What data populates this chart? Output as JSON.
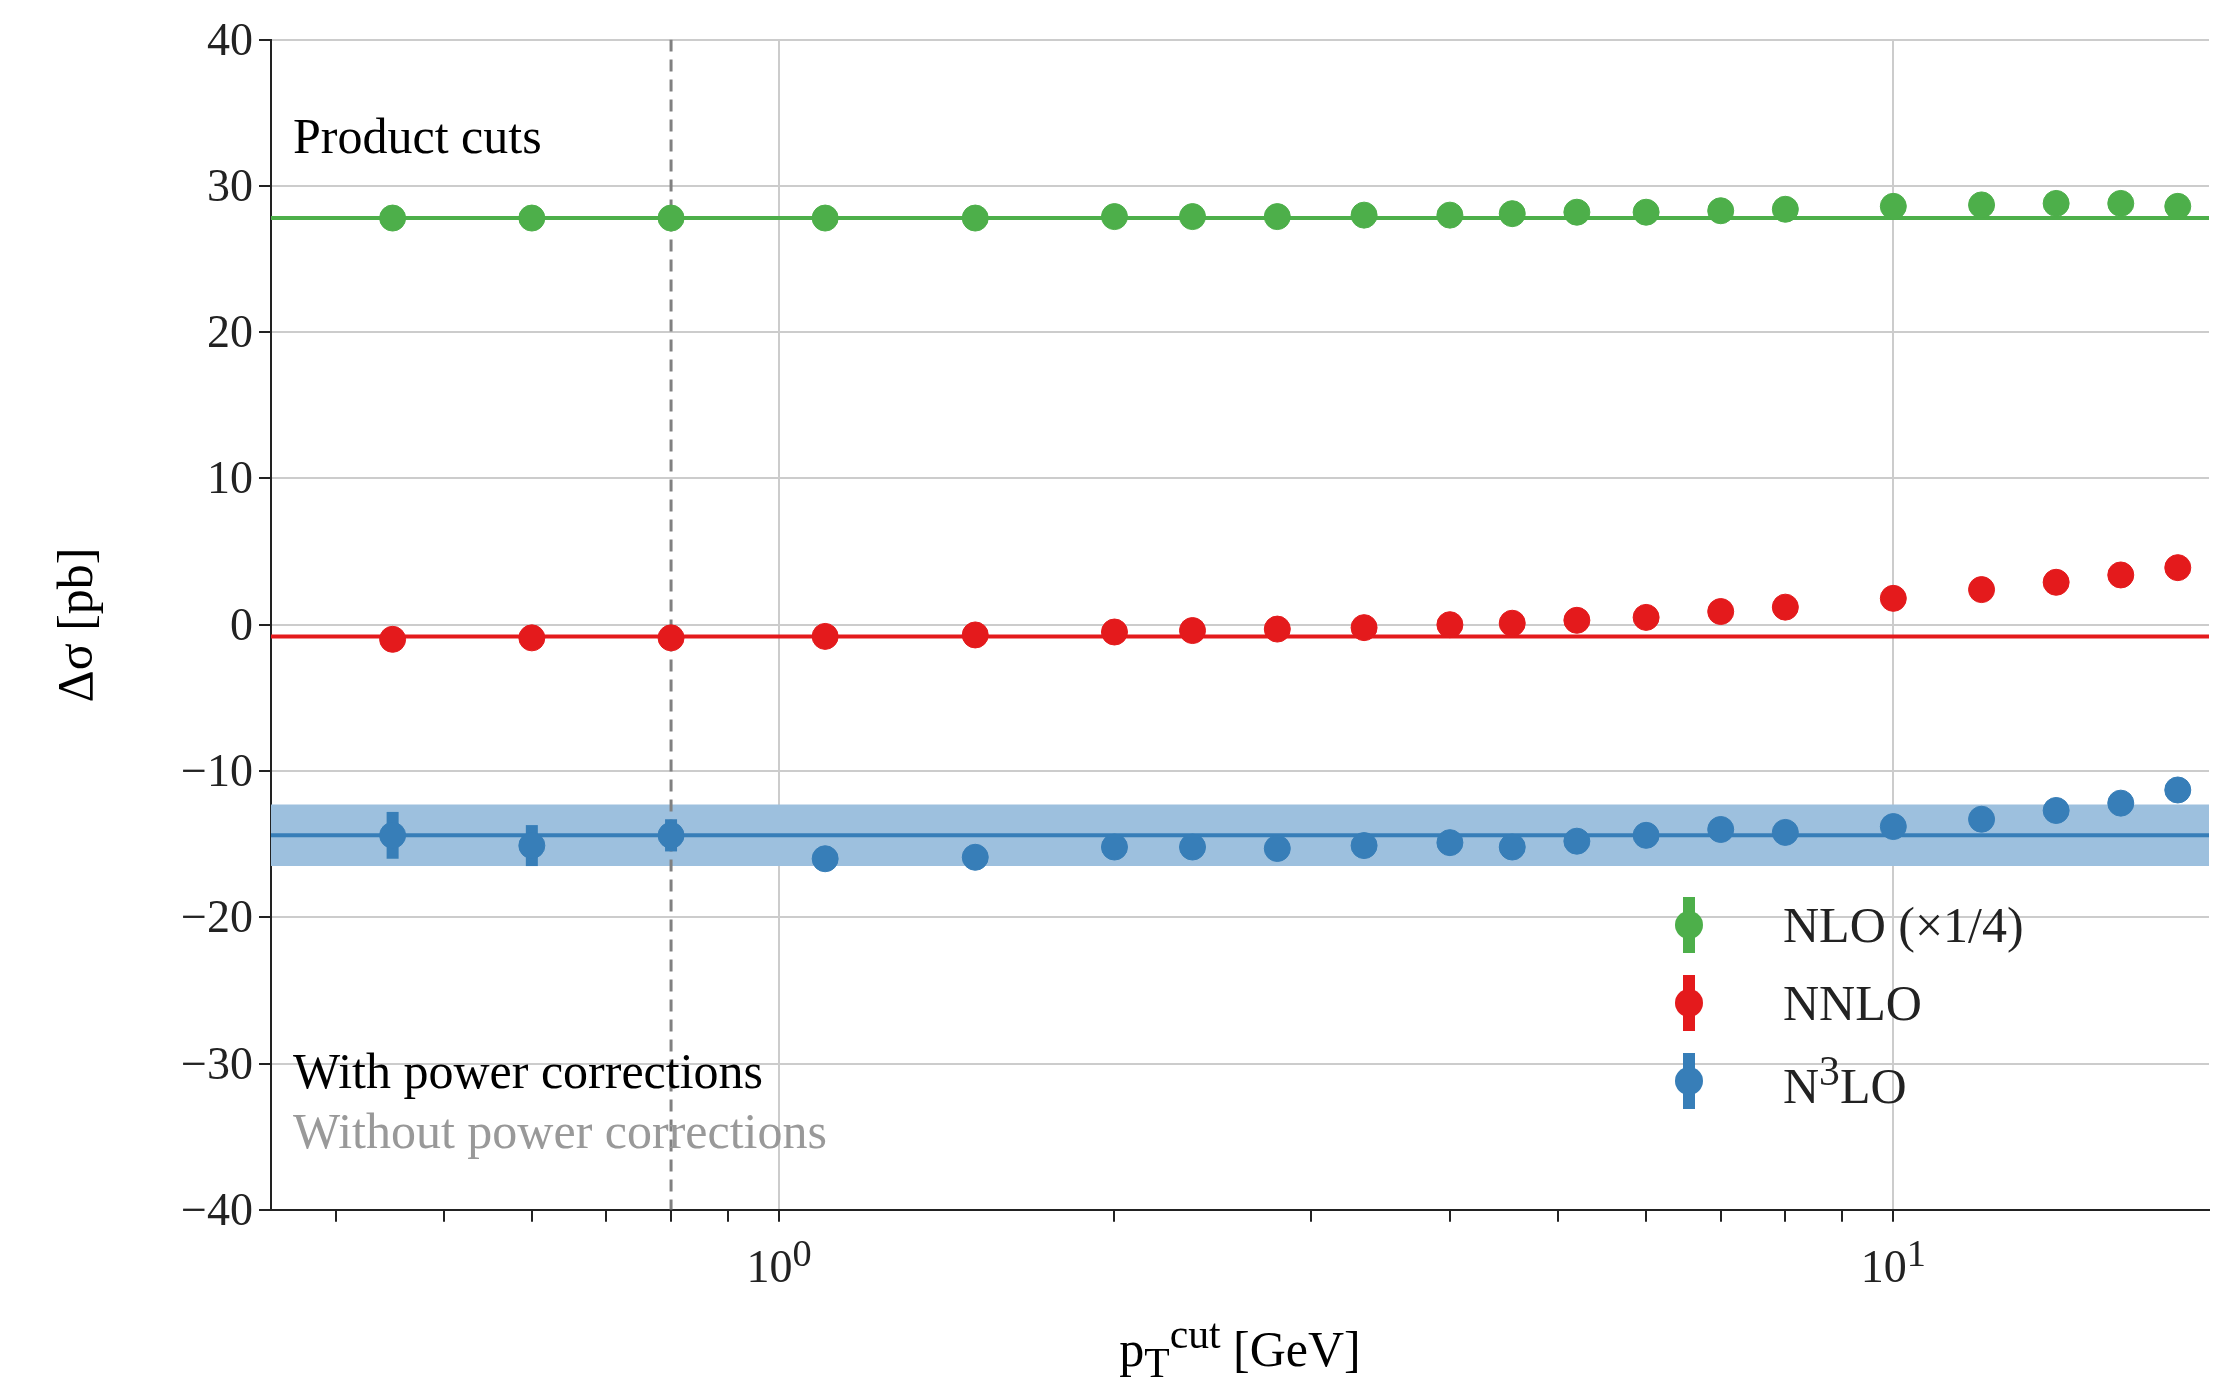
{
  "chart_data": {
    "type": "scatter",
    "xlabel": "p$_{T}$$^{cut}$ [GeV]",
    "ylabel": "Δσ [pb]",
    "x": [
      0.45,
      0.6,
      0.8,
      1.1,
      1.5,
      2,
      2.35,
      2.8,
      3.35,
      4,
      4.55,
      5.2,
      6,
      7,
      8,
      10,
      12,
      14,
      16,
      18
    ],
    "series": [
      {
        "name": "NLO (×1/4)",
        "color": "#4daf4a",
        "values": [
          27.8,
          27.8,
          27.8,
          27.8,
          27.8,
          27.9,
          27.9,
          27.9,
          28.0,
          28.0,
          28.1,
          28.2,
          28.2,
          28.3,
          28.4,
          28.6,
          28.7,
          28.8,
          28.8,
          28.6
        ]
      },
      {
        "name": "NNLO",
        "color": "#e41a1c",
        "values": [
          -1.0,
          -0.9,
          -0.9,
          -0.8,
          -0.7,
          -0.5,
          -0.4,
          -0.3,
          -0.2,
          0.0,
          0.1,
          0.3,
          0.5,
          0.9,
          1.2,
          1.8,
          2.4,
          2.9,
          3.4,
          3.9
        ]
      },
      {
        "name": "N$^{3}$LO",
        "color": "#377eb8",
        "values": [
          -14.4,
          -15.1,
          -14.4,
          -16.0,
          -15.9,
          -15.2,
          -15.2,
          -15.3,
          -15.1,
          -14.9,
          -15.2,
          -14.8,
          -14.4,
          -14.0,
          -14.2,
          -13.8,
          -13.3,
          -12.7,
          -12.2,
          -11.3
        ],
        "errors": [
          1.6,
          1.4,
          1.1,
          0.8,
          null,
          null,
          null,
          null,
          null,
          null,
          null,
          null,
          null,
          null,
          null,
          null,
          null,
          null,
          null,
          null
        ]
      }
    ],
    "log": "x",
    "xlim": [
      0.35,
      19.2
    ],
    "xticks": [
      {
        "value": 0.4,
        "label": null
      },
      {
        "value": 0.5,
        "label": null
      },
      {
        "value": 0.6,
        "label": null
      },
      {
        "value": 0.7,
        "label": null
      },
      {
        "value": 0.8,
        "label": null
      },
      {
        "value": 0.9,
        "label": null
      },
      {
        "value": 1,
        "label": "10$^{0}$"
      },
      {
        "value": 2,
        "label": null
      },
      {
        "value": 3,
        "label": null
      },
      {
        "value": 4,
        "label": null
      },
      {
        "value": 5,
        "label": null
      },
      {
        "value": 6,
        "label": null
      },
      {
        "value": 7,
        "label": null
      },
      {
        "value": 8,
        "label": null
      },
      {
        "value": 9,
        "label": null
      },
      {
        "value": 10,
        "label": "10$^{1}$"
      }
    ],
    "ylim": [
      -40,
      40
    ],
    "yticks": [
      {
        "value": -40,
        "label": "−40"
      },
      {
        "value": -30,
        "label": "−30"
      },
      {
        "value": -20,
        "label": "−20"
      },
      {
        "value": -10,
        "label": "−10"
      },
      0,
      10,
      20,
      30,
      40
    ],
    "ref_lines": [
      {
        "axis": "y",
        "value": 27.8,
        "color": "#4daf4a"
      },
      {
        "axis": "y",
        "value": -0.8,
        "color": "#e41a1c"
      },
      {
        "axis": "y",
        "value": -14.4,
        "color": "#377eb8"
      },
      {
        "axis": "x",
        "value": 0.8,
        "color": "#808080",
        "line_style": "dashed"
      }
    ],
    "bands": [
      {
        "axis": "y",
        "from": -16.5,
        "to": -12.3,
        "color": "#9dc0de"
      }
    ],
    "annotations": [
      "Product cuts",
      "With power corrections",
      "Without power corrections"
    ],
    "grid": true,
    "legend": "bottom right",
    "marker": "circle"
  }
}
